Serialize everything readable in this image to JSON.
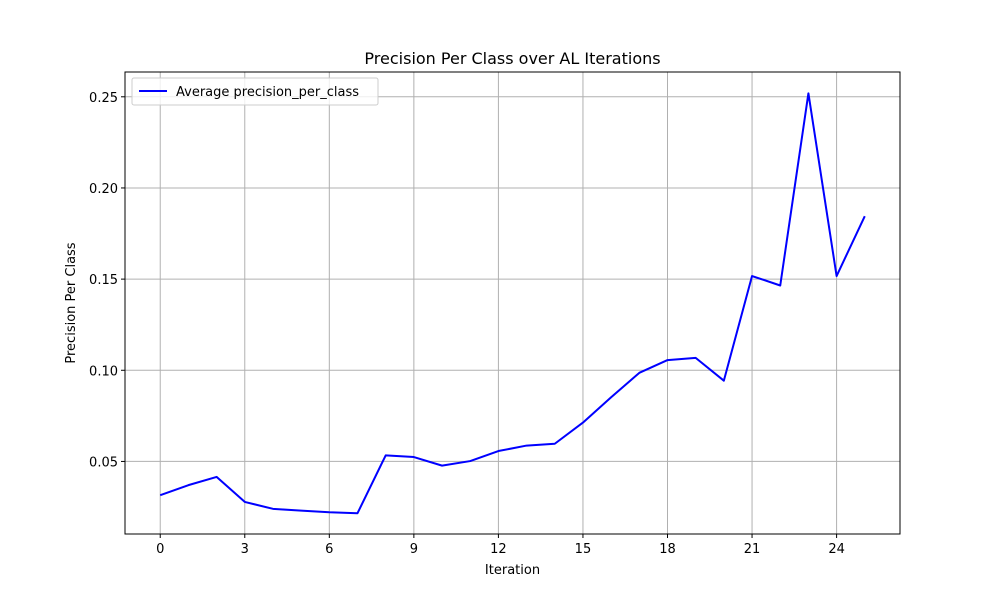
{
  "chart_data": {
    "type": "line",
    "title": "Precision Per Class over AL Iterations",
    "xlabel": "Iteration",
    "ylabel": "Precision Per Class",
    "xlim": [
      -1.25,
      26.25
    ],
    "ylim": [
      0.0102,
      0.2636
    ],
    "xticks": [
      0,
      3,
      6,
      9,
      12,
      15,
      18,
      21,
      24
    ],
    "yticks": [
      0.05,
      0.1,
      0.15,
      0.2,
      0.25
    ],
    "ytick_labels": [
      "0.05",
      "0.10",
      "0.15",
      "0.20",
      "0.25"
    ],
    "grid": true,
    "legend_position": "top-left",
    "series": [
      {
        "name": "Average precision_per_class",
        "color": "#0000ff",
        "x": [
          0,
          1,
          2,
          3,
          4,
          5,
          6,
          7,
          8,
          9,
          10,
          11,
          12,
          13,
          14,
          15,
          16,
          17,
          18,
          19,
          20,
          21,
          22,
          23,
          24,
          25
        ],
        "y": [
          0.0315,
          0.037,
          0.0415,
          0.0278,
          0.024,
          0.023,
          0.0221,
          0.0216,
          0.0533,
          0.0524,
          0.0477,
          0.0502,
          0.0557,
          0.0587,
          0.0597,
          0.0713,
          0.0852,
          0.0986,
          0.1056,
          0.1068,
          0.0943,
          0.1517,
          0.1465,
          0.2519,
          0.1517,
          0.1845
        ]
      }
    ]
  }
}
